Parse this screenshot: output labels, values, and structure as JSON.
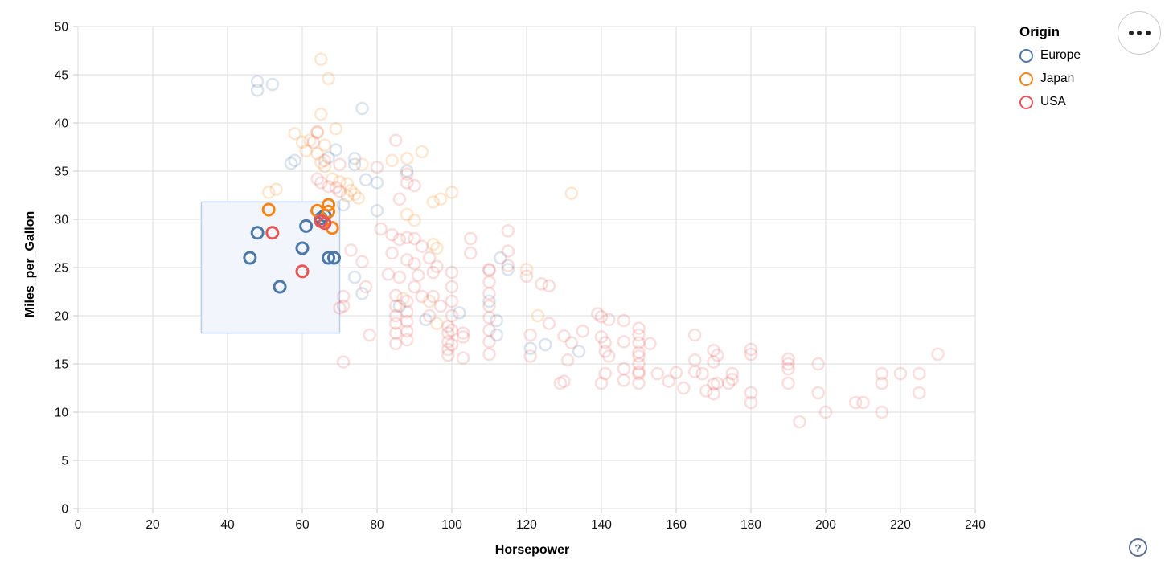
{
  "legend": {
    "title": "Origin",
    "items": [
      {
        "label": "Europe",
        "color": "#4c78a8"
      },
      {
        "label": "Japan",
        "color": "#f58518"
      },
      {
        "label": "USA",
        "color": "#e45756"
      }
    ]
  },
  "controls": {
    "menu_icon": "ellipsis-menu",
    "help_icon": "?"
  },
  "axes": {
    "x": {
      "title": "Horsepower",
      "min": 0,
      "max": 240,
      "ticks": [
        0,
        20,
        40,
        60,
        80,
        100,
        120,
        140,
        160,
        180,
        200,
        220,
        240
      ]
    },
    "y": {
      "title": "Miles_per_Gallon",
      "min": 0,
      "max": 50,
      "ticks": [
        0,
        5,
        10,
        15,
        20,
        25,
        30,
        35,
        40,
        45,
        50
      ]
    }
  },
  "chart_data": {
    "type": "scatter",
    "title": "",
    "xlabel": "Horsepower",
    "ylabel": "Miles_per_Gallon",
    "xlim": [
      0,
      240
    ],
    "ylim": [
      0,
      50
    ],
    "grid": true,
    "legend_position": "top-right",
    "point_style": {
      "shape": "open-circle",
      "radius": 7,
      "stroke_width": 2.5,
      "faded_opacity": 0.2,
      "selected_opacity": 1
    },
    "brush": {
      "x_extent": [
        33,
        70
      ],
      "y_extent": [
        18.2,
        31.8
      ],
      "fill": "#f2f6fc",
      "stroke": "#b8cdf0"
    },
    "series": [
      {
        "name": "Europe",
        "color": "#4c78a8",
        "selected_points": [
          [
            46,
            26
          ],
          [
            48,
            28.6
          ],
          [
            54,
            23
          ],
          [
            60,
            27
          ],
          [
            61,
            29.3
          ],
          [
            65,
            30.1
          ],
          [
            66,
            30.4
          ],
          [
            67,
            26
          ],
          [
            68.5,
            26
          ]
        ],
        "points": [
          [
            48,
            44.3
          ],
          [
            48,
            43.4
          ],
          [
            52,
            44
          ],
          [
            76,
            41.5
          ],
          [
            69,
            37.2
          ],
          [
            74,
            36.3
          ],
          [
            67,
            36.4
          ],
          [
            58,
            36.1
          ],
          [
            57,
            35.8
          ],
          [
            74,
            35.7
          ],
          [
            88,
            35
          ],
          [
            77,
            34.1
          ],
          [
            80,
            33.8
          ],
          [
            80,
            30.9
          ],
          [
            71,
            31.5
          ],
          [
            76,
            22.3
          ],
          [
            74,
            24
          ],
          [
            86,
            21
          ],
          [
            93,
            19.6
          ],
          [
            102,
            20.3
          ],
          [
            113,
            26
          ],
          [
            115,
            24.8
          ],
          [
            110,
            21.5
          ],
          [
            112,
            19.5
          ],
          [
            112,
            18
          ],
          [
            121,
            16.6
          ],
          [
            125,
            17
          ],
          [
            134,
            16.3
          ]
        ]
      },
      {
        "name": "Japan",
        "color": "#f58518",
        "selected_points": [
          [
            51,
            31
          ],
          [
            64,
            30.9
          ],
          [
            67,
            31.5
          ],
          [
            67,
            30.8
          ],
          [
            68,
            29.1
          ]
        ],
        "points": [
          [
            65,
            46.6
          ],
          [
            67,
            44.6
          ],
          [
            65,
            40.9
          ],
          [
            69,
            39.4
          ],
          [
            64,
            39.1
          ],
          [
            58,
            38.9
          ],
          [
            60,
            38
          ],
          [
            62,
            38.2
          ],
          [
            66,
            37.7
          ],
          [
            61,
            37.1
          ],
          [
            64,
            36.8
          ],
          [
            65,
            35.9
          ],
          [
            66,
            35.5
          ],
          [
            76,
            35.7
          ],
          [
            84,
            36.1
          ],
          [
            88,
            36.3
          ],
          [
            92,
            37
          ],
          [
            68,
            34.2
          ],
          [
            70,
            33.9
          ],
          [
            72,
            33.7
          ],
          [
            73,
            33
          ],
          [
            74,
            32.6
          ],
          [
            75,
            32.2
          ],
          [
            72,
            32.4
          ],
          [
            51,
            32.8
          ],
          [
            53,
            33.1
          ],
          [
            95,
            31.8
          ],
          [
            100,
            32.8
          ],
          [
            97,
            32.1
          ],
          [
            132,
            32.7
          ],
          [
            90,
            29.9
          ],
          [
            88,
            30.5
          ],
          [
            95,
            27.4
          ],
          [
            96,
            27
          ],
          [
            94,
            21.5
          ],
          [
            87,
            21.8
          ],
          [
            96,
            19.2
          ],
          [
            120,
            24.8
          ],
          [
            123,
            20
          ]
        ]
      },
      {
        "name": "USA",
        "color": "#e45756",
        "selected_points": [
          [
            52,
            28.6
          ],
          [
            60,
            24.6
          ],
          [
            65,
            29.8
          ],
          [
            66,
            29.6
          ]
        ],
        "points": [
          [
            64,
            39
          ],
          [
            63,
            38
          ],
          [
            66,
            36.1
          ],
          [
            70,
            35.7
          ],
          [
            85,
            38.2
          ],
          [
            80,
            35.4
          ],
          [
            88,
            34.7
          ],
          [
            90,
            33.5
          ],
          [
            88,
            33.8
          ],
          [
            64,
            34.2
          ],
          [
            65,
            33.8
          ],
          [
            67,
            33.4
          ],
          [
            69,
            33.3
          ],
          [
            70,
            32.9
          ],
          [
            86,
            32.1
          ],
          [
            73,
            26.8
          ],
          [
            77,
            23
          ],
          [
            81,
            29
          ],
          [
            84,
            28.4
          ],
          [
            86,
            27.9
          ],
          [
            88,
            28.1
          ],
          [
            90,
            28
          ],
          [
            92,
            27.2
          ],
          [
            84,
            26.5
          ],
          [
            88,
            25.8
          ],
          [
            90,
            25.4
          ],
          [
            94,
            26
          ],
          [
            96,
            25.1
          ],
          [
            83,
            24.3
          ],
          [
            86,
            24
          ],
          [
            91,
            24.2
          ],
          [
            95,
            24.5
          ],
          [
            105,
            28
          ],
          [
            105,
            26.5
          ],
          [
            115,
            28.8
          ],
          [
            115,
            26.7
          ],
          [
            115,
            25.2
          ],
          [
            110,
            24.8
          ],
          [
            71,
            22
          ],
          [
            71,
            21
          ],
          [
            70,
            20.8
          ],
          [
            78,
            18
          ],
          [
            71,
            15.2
          ],
          [
            76,
            25.6
          ],
          [
            85,
            22.1
          ],
          [
            85,
            21
          ],
          [
            85,
            20
          ],
          [
            85,
            19.2
          ],
          [
            85,
            18.2
          ],
          [
            85,
            17.1
          ],
          [
            88,
            21.5
          ],
          [
            88,
            20.4
          ],
          [
            88,
            19.4
          ],
          [
            88,
            18.4
          ],
          [
            88,
            17.5
          ],
          [
            90,
            23
          ],
          [
            92,
            22
          ],
          [
            94,
            20
          ],
          [
            95,
            22
          ],
          [
            97,
            21
          ],
          [
            99,
            18.9
          ],
          [
            99,
            18.2
          ],
          [
            99,
            17.3
          ],
          [
            99,
            16.5
          ],
          [
            99,
            15.9
          ],
          [
            100,
            24.5
          ],
          [
            100,
            23
          ],
          [
            100,
            21.5
          ],
          [
            100,
            20
          ],
          [
            100,
            18.5
          ],
          [
            100,
            17
          ],
          [
            103,
            18.2
          ],
          [
            103,
            17.8
          ],
          [
            103,
            15.6
          ],
          [
            110,
            24.7
          ],
          [
            110,
            23.5
          ],
          [
            110,
            22.3
          ],
          [
            110,
            21
          ],
          [
            110,
            19.8
          ],
          [
            110,
            18.5
          ],
          [
            110,
            17.3
          ],
          [
            110,
            16
          ],
          [
            120,
            24.1
          ],
          [
            124,
            23.3
          ],
          [
            126,
            23.1
          ],
          [
            126,
            19.2
          ],
          [
            121,
            18
          ],
          [
            121,
            15.8
          ],
          [
            130,
            17.9
          ],
          [
            132,
            17.2
          ],
          [
            131,
            15.4
          ],
          [
            130,
            13.2
          ],
          [
            129,
            13
          ],
          [
            135,
            18.4
          ],
          [
            139,
            20.2
          ],
          [
            140,
            19.9
          ],
          [
            140,
            17.8
          ],
          [
            141,
            17.2
          ],
          [
            141,
            16.3
          ],
          [
            142,
            19.6
          ],
          [
            142,
            15.8
          ],
          [
            141,
            14
          ],
          [
            140,
            13
          ],
          [
            146,
            19.5
          ],
          [
            146,
            17.3
          ],
          [
            146,
            14.5
          ],
          [
            146,
            13.3
          ],
          [
            150,
            18.7
          ],
          [
            150,
            18
          ],
          [
            150,
            17.2
          ],
          [
            150,
            16.2
          ],
          [
            150,
            15.8
          ],
          [
            150,
            15
          ],
          [
            150,
            14.2
          ],
          [
            150,
            14
          ],
          [
            150,
            13
          ],
          [
            153,
            17.1
          ],
          [
            155,
            14
          ],
          [
            158,
            13.2
          ],
          [
            160,
            14.1
          ],
          [
            162,
            12.5
          ],
          [
            165,
            18
          ],
          [
            165,
            15.4
          ],
          [
            165,
            14.2
          ],
          [
            167,
            14
          ],
          [
            168,
            12.2
          ],
          [
            170,
            16.4
          ],
          [
            170,
            15.2
          ],
          [
            170,
            12.9
          ],
          [
            170,
            11.9
          ],
          [
            175,
            14
          ],
          [
            175,
            13.4
          ],
          [
            174,
            13
          ],
          [
            171,
            15.9
          ],
          [
            171,
            13
          ],
          [
            180,
            16.5
          ],
          [
            180,
            16
          ],
          [
            180,
            12
          ],
          [
            180,
            11
          ],
          [
            190,
            15.5
          ],
          [
            190,
            15
          ],
          [
            190,
            14.5
          ],
          [
            190,
            13
          ],
          [
            193,
            9
          ],
          [
            198,
            15
          ],
          [
            198,
            12
          ],
          [
            200,
            10
          ],
          [
            208,
            11
          ],
          [
            210,
            11
          ],
          [
            215,
            14
          ],
          [
            215,
            13
          ],
          [
            215,
            10
          ],
          [
            220,
            14
          ],
          [
            225,
            14
          ],
          [
            225,
            12
          ],
          [
            230,
            16
          ]
        ]
      }
    ]
  }
}
